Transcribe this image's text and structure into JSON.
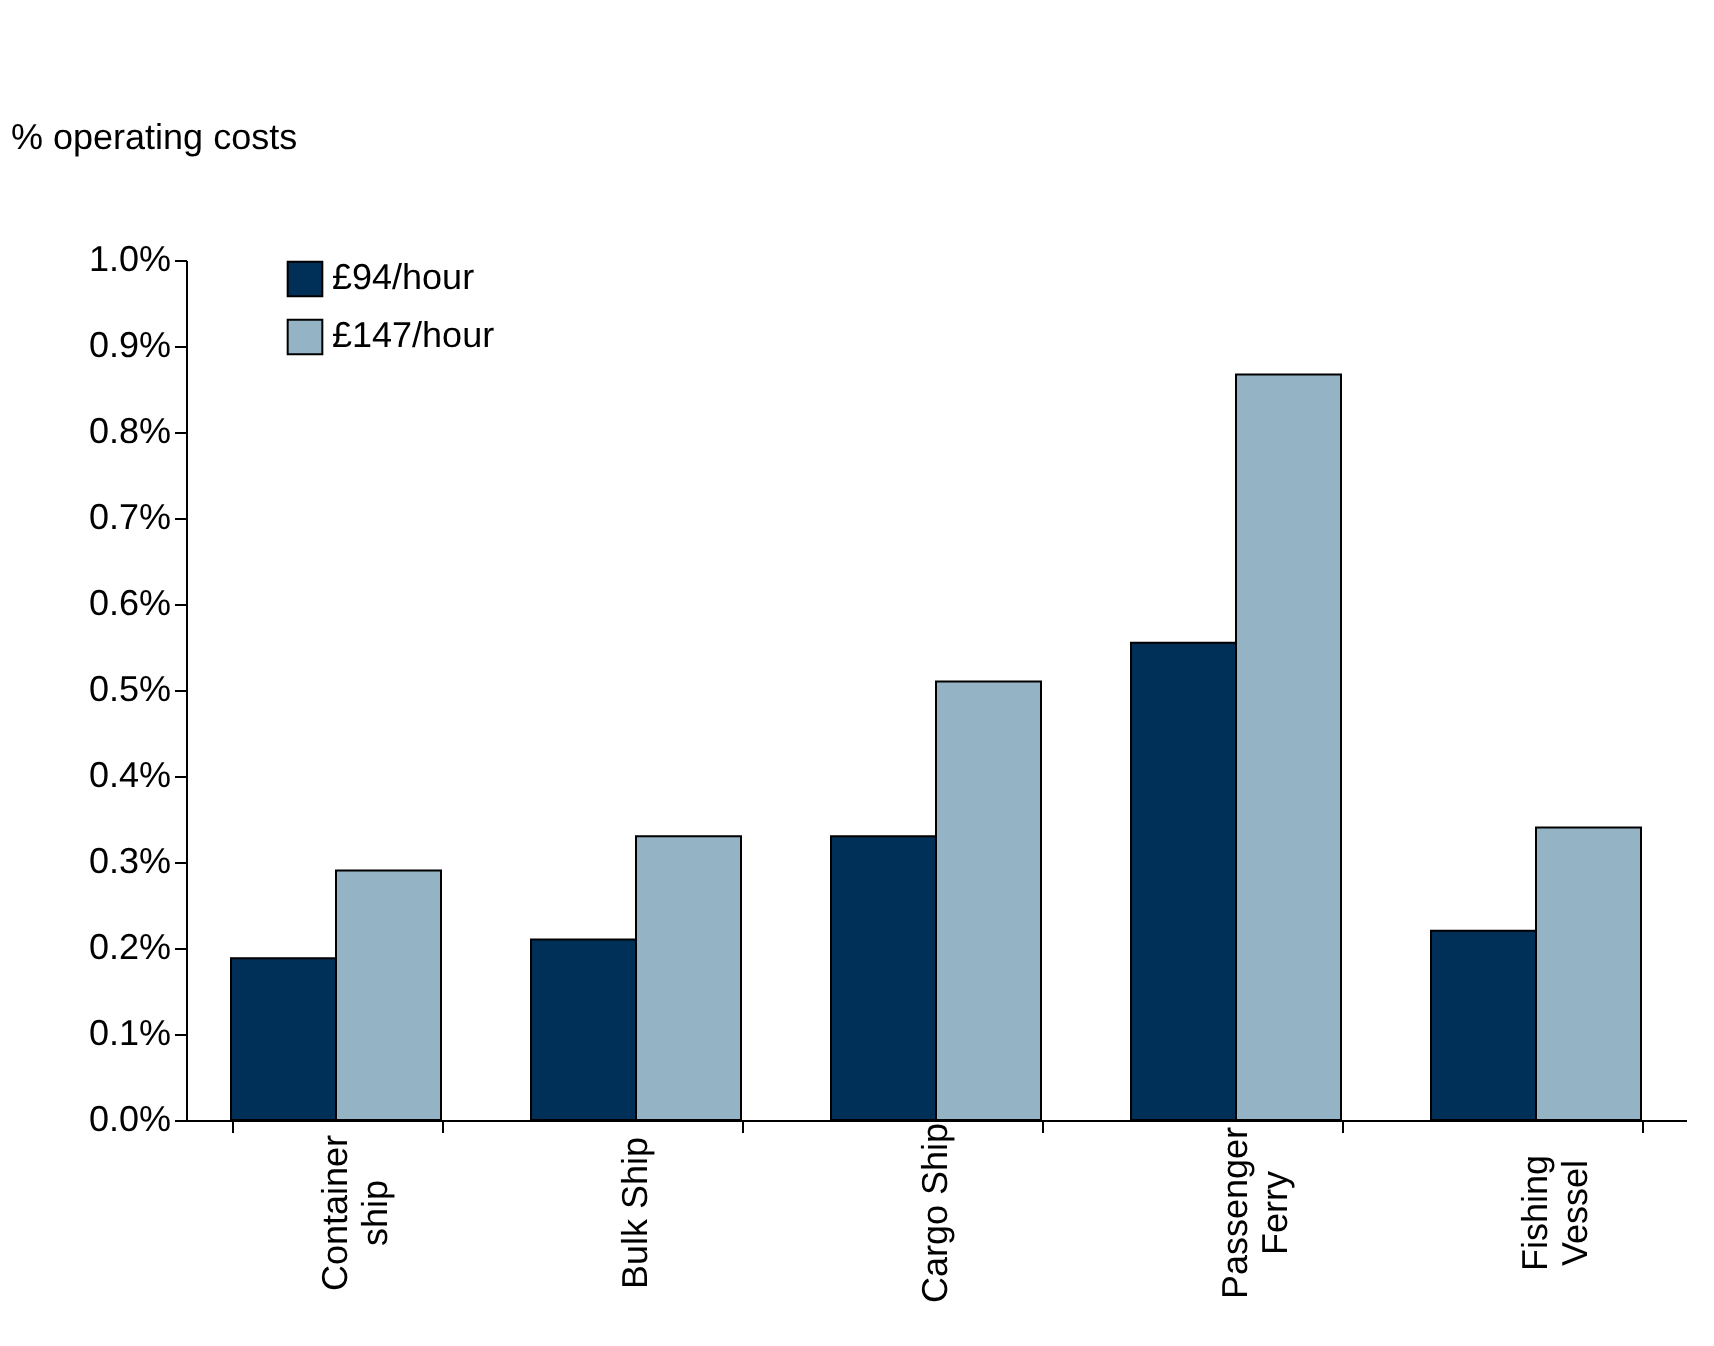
{
  "chart_data": {
    "type": "bar",
    "ylabel": "% operating costs",
    "categories": [
      "Container\nship",
      "Bulk Ship",
      "Cargo Ship",
      "Passenger\nFerry",
      "Fishing\nVessel"
    ],
    "series": [
      {
        "name": "£94/hour",
        "color": "#003057",
        "values": [
          0.188,
          0.21,
          0.33,
          0.555,
          0.22
        ]
      },
      {
        "name": "£147/hour",
        "color": "#94b4c6",
        "values": [
          0.29,
          0.33,
          0.51,
          0.867,
          0.34
        ]
      }
    ],
    "ylim": [
      0,
      1
    ],
    "yticks": [
      {
        "value": 0,
        "label": "0.0%"
      },
      {
        "value": 0.1,
        "label": "0.1%"
      },
      {
        "value": 0.2,
        "label": "0.2%"
      },
      {
        "value": 0.3,
        "label": "0.3%"
      },
      {
        "value": 0.4,
        "label": "0.4%"
      },
      {
        "value": 0.5,
        "label": "0.5%"
      },
      {
        "value": 0.6,
        "label": "0.6%"
      },
      {
        "value": 0.7,
        "label": "0.7%"
      },
      {
        "value": 0.8,
        "label": "0.8%"
      },
      {
        "value": 0.9,
        "label": "0.9%"
      },
      {
        "value": 1,
        "label": "1.0%"
      }
    ],
    "legend": "top left",
    "grid": false
  }
}
